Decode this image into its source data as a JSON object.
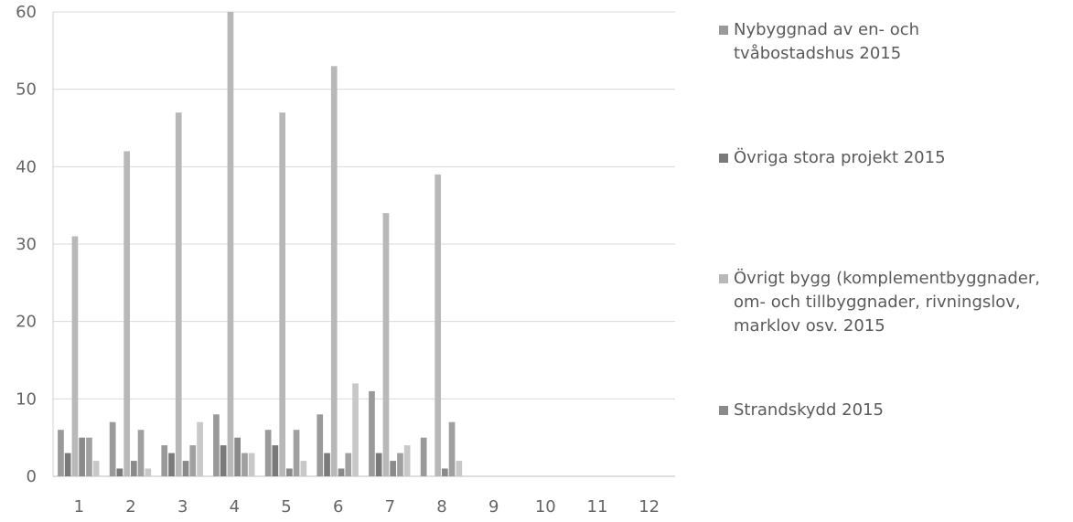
{
  "chart_data": {
    "type": "bar",
    "title": "",
    "xlabel": "",
    "ylabel": "",
    "categories": [
      "1",
      "2",
      "3",
      "4",
      "5",
      "6",
      "7",
      "8",
      "9",
      "10",
      "11",
      "12"
    ],
    "ylim": [
      0,
      60
    ],
    "yticks": [
      0,
      10,
      20,
      30,
      40,
      50,
      60
    ],
    "grid": true,
    "legend_position": "right",
    "series": [
      {
        "name": "Nybyggnad av en- och tvåbostadshus 2015",
        "color": "#9a9a9a",
        "values": [
          6,
          7,
          4,
          8,
          6,
          8,
          11,
          5,
          null,
          null,
          null,
          null
        ]
      },
      {
        "name": "Övriga stora projekt 2015",
        "color": "#7a7a7a",
        "values": [
          3,
          1,
          3,
          4,
          4,
          3,
          3,
          0,
          null,
          null,
          null,
          null
        ]
      },
      {
        "name": "Övrigt bygg (komplementbyggnader, om- och tillbyggnader, rivningslov, marklov osv. 2015",
        "color": "#b8b8b8",
        "values": [
          31,
          42,
          47,
          60,
          47,
          53,
          34,
          39,
          null,
          null,
          null,
          null
        ]
      },
      {
        "name": "Strandskydd 2015",
        "color": "#8a8a8a",
        "values": [
          5,
          2,
          2,
          5,
          1,
          1,
          2,
          1,
          null,
          null,
          null,
          null
        ]
      },
      {
        "name": "",
        "color": "#a0a0a0",
        "values": [
          5,
          6,
          4,
          3,
          6,
          3,
          3,
          7,
          null,
          null,
          null,
          null
        ]
      },
      {
        "name": "",
        "color": "#c8c8c8",
        "values": [
          2,
          1,
          7,
          3,
          2,
          12,
          4,
          2,
          null,
          null,
          null,
          null
        ]
      }
    ]
  }
}
